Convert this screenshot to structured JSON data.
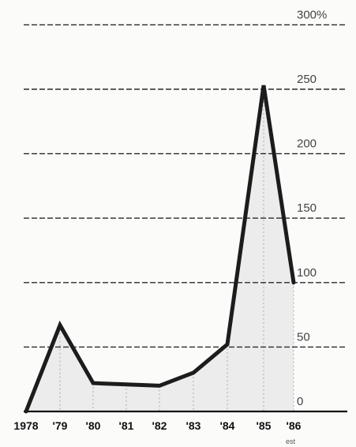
{
  "chart_data": {
    "type": "line",
    "categories": [
      "1978",
      "'79",
      "'80",
      "'81",
      "'82",
      "'83",
      "'84",
      "'85",
      "'86"
    ],
    "category_note": {
      "index": 8,
      "text": "est"
    },
    "values": [
      0,
      67,
      22,
      21,
      20,
      30,
      52,
      253,
      100
    ],
    "y_tick_labels": [
      "0",
      "50",
      "100",
      "150",
      "200",
      "250",
      "300%"
    ],
    "y_tick_values": [
      0,
      50,
      100,
      150,
      200,
      250,
      300
    ],
    "ylim": [
      0,
      300
    ],
    "grid": true,
    "title": "",
    "xlabel": "",
    "ylabel": "",
    "colors": {
      "line": "#1c1c1c",
      "grid": "#2b2b2b",
      "fill": "#ececec"
    }
  }
}
